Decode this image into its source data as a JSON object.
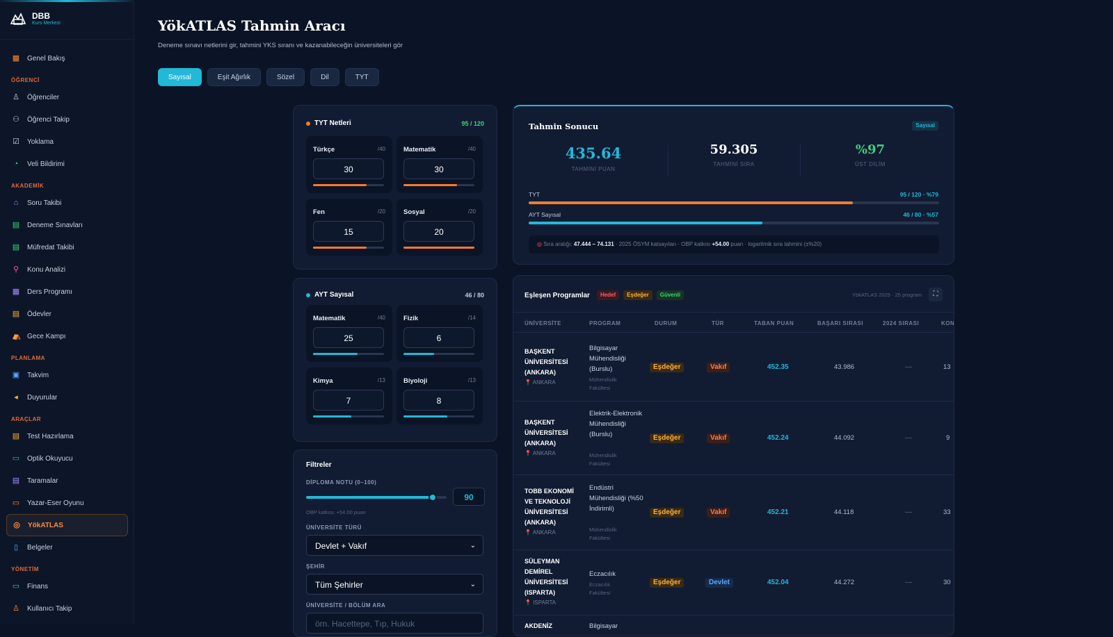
{
  "brand": {
    "name": "DBB",
    "sub": "Kurs Merkezi"
  },
  "nav": [
    {
      "type": "item",
      "label": "Genel Bakış",
      "icon": "grid-icon",
      "glyph": "▦",
      "color": "#ff8a3d"
    },
    {
      "type": "sec",
      "label": "ÖĞRENCİ"
    },
    {
      "type": "item",
      "label": "Öğrenciler",
      "icon": "user-icon",
      "glyph": "♙",
      "color": "#c8d2e0"
    },
    {
      "type": "item",
      "label": "Öğrenci Takip",
      "icon": "users-icon",
      "glyph": "⚇",
      "color": "#c8d2e0"
    },
    {
      "type": "item",
      "label": "Yoklama",
      "icon": "checkbox-icon",
      "glyph": "☑",
      "color": "#c8d2e0"
    },
    {
      "type": "item",
      "label": "Veli Bildirimi",
      "icon": "chat-icon",
      "glyph": "◔",
      "color": "#3fd27a"
    },
    {
      "type": "sec",
      "label": "AKADEMİK"
    },
    {
      "type": "item",
      "label": "Soru Takibi",
      "icon": "home-icon",
      "glyph": "⌂",
      "color": "#a88bff"
    },
    {
      "type": "item",
      "label": "Deneme Sınavları",
      "icon": "document-icon",
      "glyph": "▤",
      "color": "#3fd27a"
    },
    {
      "type": "item",
      "label": "Müfredat Takibi",
      "icon": "book-icon",
      "glyph": "▤",
      "color": "#3fd27a"
    },
    {
      "type": "item",
      "label": "Konu Analizi",
      "icon": "search-icon",
      "glyph": "⚲",
      "color": "#ff5aa8"
    },
    {
      "type": "item",
      "label": "Ders Programı",
      "icon": "calendar-grid-icon",
      "glyph": "▦",
      "color": "#a88bff"
    },
    {
      "type": "item",
      "label": "Ödevler",
      "icon": "notes-icon",
      "glyph": "▤",
      "color": "#ffb13d"
    },
    {
      "type": "item",
      "label": "Gece Kampı",
      "icon": "camp-icon",
      "glyph": "⛺",
      "color": "#a88bff"
    },
    {
      "type": "sec",
      "label": "PLANLAMA"
    },
    {
      "type": "item",
      "label": "Takvim",
      "icon": "calendar-icon",
      "glyph": "▣",
      "color": "#5aa8ff"
    },
    {
      "type": "item",
      "label": "Duyurular",
      "icon": "megaphone-icon",
      "glyph": "◂",
      "color": "#ffb13d"
    },
    {
      "type": "sec",
      "label": "ARAÇLAR"
    },
    {
      "type": "item",
      "label": "Test Hazırlama",
      "icon": "edit-icon",
      "glyph": "▤",
      "color": "#ffb13d"
    },
    {
      "type": "item",
      "label": "Optik Okuyucu",
      "icon": "scanner-icon",
      "glyph": "▭",
      "color": "#22b8d8"
    },
    {
      "type": "item",
      "label": "Taramalar",
      "icon": "scan-icon",
      "glyph": "▤",
      "color": "#a88bff"
    },
    {
      "type": "item",
      "label": "Yazar-Eser Oyunu",
      "icon": "game-icon",
      "glyph": "▭",
      "color": "#ff8a3d"
    },
    {
      "type": "item",
      "label": "YökATLAS",
      "icon": "target-icon",
      "glyph": "◎",
      "color": "#ff8a3d",
      "active": true
    },
    {
      "type": "item",
      "label": "Belgeler",
      "icon": "file-icon",
      "glyph": "▯",
      "color": "#5aa8ff"
    },
    {
      "type": "sec",
      "label": "YÖNETİM"
    },
    {
      "type": "item",
      "label": "Finans",
      "icon": "money-icon",
      "glyph": "▭",
      "color": "#3fd27a"
    },
    {
      "type": "item",
      "label": "Kullanıcı Takip",
      "icon": "user-track-icon",
      "glyph": "♙",
      "color": "#ff8a3d"
    }
  ],
  "page": {
    "title": "YökATLAS Tahmin Aracı",
    "subtitle": "Deneme sınavı netlerini gir, tahmini YKS sıranı ve kazanabileceğin üniversiteleri gör"
  },
  "tabs": [
    "Sayısal",
    "Eşit Ağırlık",
    "Sözel",
    "Dil",
    "TYT"
  ],
  "tyt": {
    "title": "TYT Netleri",
    "count": "95 / 120",
    "cards": [
      {
        "label": "Türkçe",
        "max": "/40",
        "value": "30",
        "fill": 0.75,
        "color": "#ff7a2d"
      },
      {
        "label": "Matematik",
        "max": "/40",
        "value": "30",
        "fill": 0.75,
        "color": "#ff7a2d"
      },
      {
        "label": "Fen",
        "max": "/20",
        "value": "15",
        "fill": 0.75,
        "color": "#ff7a2d"
      },
      {
        "label": "Sosyal",
        "max": "/20",
        "value": "20",
        "fill": 1.0,
        "color": "#ff7a2d"
      }
    ]
  },
  "ayt": {
    "title": "AYT Sayısal",
    "count": "46 / 80",
    "cards": [
      {
        "label": "Matematik",
        "max": "/40",
        "value": "25",
        "fill": 0.625,
        "color": "#22b8d8"
      },
      {
        "label": "Fizik",
        "max": "/14",
        "value": "6",
        "fill": 0.43,
        "color": "#22b8d8"
      },
      {
        "label": "Kimya",
        "max": "/13",
        "value": "7",
        "fill": 0.54,
        "color": "#22b8d8"
      },
      {
        "label": "Biyoloji",
        "max": "/13",
        "value": "8",
        "fill": 0.62,
        "color": "#22b8d8"
      }
    ]
  },
  "filters": {
    "title": "Filtreler",
    "diploma_label": "DİPLOMA NOTU (0–100)",
    "diploma_value": "90",
    "diploma_level": 0.9,
    "obp_note": "OBP katkısı: +54.00 puan",
    "uni_type_label": "ÜNİVERSİTE TÜRÜ",
    "uni_type": "Devlet + Vakıf",
    "city_label": "ŞEHİR",
    "city": "Tüm Şehirler",
    "search_label": "ÜNİVERSİTE / BÖLÜM ARA",
    "search_placeholder": "örn. Hacettepe, Tıp, Hukuk"
  },
  "result": {
    "title": "Tahmin Sonucu",
    "badge": "Sayısal",
    "score": "435.64",
    "score_label": "TAHMİNİ PUAN",
    "rank": "59.305",
    "rank_label": "TAHMİNİ SIRA",
    "pct": "%97",
    "pct_label": "ÜST DİLİM",
    "tyt_label": "TYT",
    "tyt_info": "95 / 120 · %79",
    "tyt_level": 0.79,
    "ayt_label": "AYT Sayısal",
    "ayt_info": "46 / 80 · %57",
    "ayt_level": 0.57,
    "note_pre": "Sıra aralığı:",
    "range_a": "47.444",
    "range_sep": "–",
    "range_b": "74.131",
    "note_mid": "· 2025 ÖSYM katsayıları · OBP katkısı",
    "obp": "+54.00",
    "note_post": "puan · logaritmik sıra tahmini (±%20)"
  },
  "programs": {
    "title": "Eşleşen Programlar",
    "tags": [
      "Hedef",
      "Eşdeğer",
      "Güvenli"
    ],
    "source": "YökATLAS 2025 · 25 program",
    "columns": [
      "ÜNİVERSİTE",
      "PROGRAM",
      "DURUM",
      "TÜR",
      "TABAN PUAN",
      "BAŞARI SIRASI",
      "2024 SIRASI",
      "KON"
    ],
    "rows": [
      {
        "uni": "BAŞKENT ÜNİVERSİTESİ (ANKARA)",
        "city": "ANKARA",
        "program": "Bilgisayar Mühendisliği (Burslu)",
        "faculty": "Mühendislik Fakültesi",
        "status": "Eşdeğer",
        "type": "Vakıf",
        "base": "452.35",
        "rank": "43.986",
        "prev": "—",
        "quota": "13"
      },
      {
        "uni": "BAŞKENT ÜNİVERSİTESİ (ANKARA)",
        "city": "ANKARA",
        "program": "Elektrik-Elektronik Mühendisliği (Burslu)",
        "faculty": "Mühendislik Fakültesi",
        "status": "Eşdeğer",
        "type": "Vakıf",
        "base": "452.24",
        "rank": "44.092",
        "prev": "—",
        "quota": "9"
      },
      {
        "uni": "TOBB EKONOMİ VE TEKNOLOJİ ÜNİVERSİTESİ (ANKARA)",
        "city": "ANKARA",
        "program": "Endüstri Mühendisliği (%50 İndirimli)",
        "faculty": "Mühendislik Fakültesi",
        "status": "Eşdeğer",
        "type": "Vakıf",
        "base": "452.21",
        "rank": "44.118",
        "prev": "—",
        "quota": "33"
      },
      {
        "uni": "SÜLEYMAN DEMİREL ÜNİVERSİTESİ (ISPARTA)",
        "city": "ISPARTA",
        "program": "Eczacılık",
        "faculty": "Eczacılık Fakültesi",
        "status": "Eşdeğer",
        "type": "Devlet",
        "base": "452.04",
        "rank": "44.272",
        "prev": "—",
        "quota": "30"
      },
      {
        "uni": "AKDENİZ",
        "city": "",
        "program": "Bilgisayar",
        "faculty": "",
        "status": "",
        "type": "",
        "base": "",
        "rank": "",
        "prev": "",
        "quota": ""
      }
    ]
  }
}
